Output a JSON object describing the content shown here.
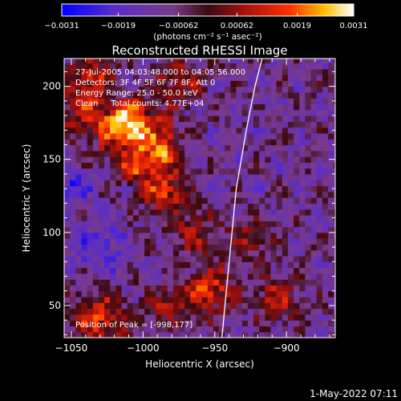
{
  "chart_data": {
    "type": "heatmap",
    "title": "Reconstructed RHESSI Image",
    "xlabel": "Heliocentric X (arcsec)",
    "ylabel": "Heliocentric Y (arcsec)",
    "xlim": [
      -1055,
      -866
    ],
    "ylim": [
      28,
      219
    ],
    "xticks": [
      -1050,
      -1000,
      -950,
      -900
    ],
    "yticks": [
      50,
      100,
      150,
      200
    ],
    "colorbar": {
      "min": -0.0031,
      "max": 0.0031,
      "ticks": [
        "-0.0031",
        "-0.0019",
        "-0.00062",
        "0.00062",
        "0.0019",
        "0.0031"
      ],
      "unit_label": "(photons cm⁻² s⁻¹ asec⁻²)"
    },
    "annotations": [
      "27-Jul-2005 04:03:48.000 to 04:05:56.000",
      "Detectors: 3F 4F 5F 6F 7F 8F, Att 0",
      "Energy Range: 25.0 - 50.0 keV",
      "Clean     Total counts: 4.77E+04"
    ],
    "peak_label": "Position of Peak = [-998,177]",
    "peak": [
      -998,
      177
    ],
    "limb": {
      "x": [
        -945,
        -940,
        -935,
        -928,
        -922,
        -917
      ],
      "y": [
        28,
        80,
        130,
        170,
        200,
        219
      ]
    },
    "blobs": [
      {
        "x": -1010,
        "y": 173,
        "sigma": 10,
        "amp": 0.0031
      },
      {
        "x": -995,
        "y": 155,
        "sigma": 14,
        "amp": 0.0024
      },
      {
        "x": -985,
        "y": 127,
        "sigma": 10,
        "amp": 0.0021
      },
      {
        "x": -1040,
        "y": 185,
        "sigma": 13,
        "amp": 0.0019
      },
      {
        "x": -1035,
        "y": 210,
        "sigma": 10,
        "amp": 0.0017
      },
      {
        "x": -975,
        "y": 205,
        "sigma": 12,
        "amp": 0.0016
      },
      {
        "x": -965,
        "y": 100,
        "sigma": 11,
        "amp": 0.0014
      },
      {
        "x": -1030,
        "y": 40,
        "sigma": 13,
        "amp": 0.0022
      },
      {
        "x": -955,
        "y": 60,
        "sigma": 12,
        "amp": 0.0023
      },
      {
        "x": -905,
        "y": 55,
        "sigma": 11,
        "amp": 0.0018
      },
      {
        "x": -985,
        "y": 50,
        "sigma": 9,
        "amp": 0.0015
      },
      {
        "x": -925,
        "y": 95,
        "sigma": 10,
        "amp": 0.0013
      },
      {
        "x": -1050,
        "y": 130,
        "sigma": 8,
        "amp": -0.0016
      },
      {
        "x": -1030,
        "y": 90,
        "sigma": 12,
        "amp": -0.0012
      }
    ]
  },
  "timestamp": "1-May-2022 07:11"
}
